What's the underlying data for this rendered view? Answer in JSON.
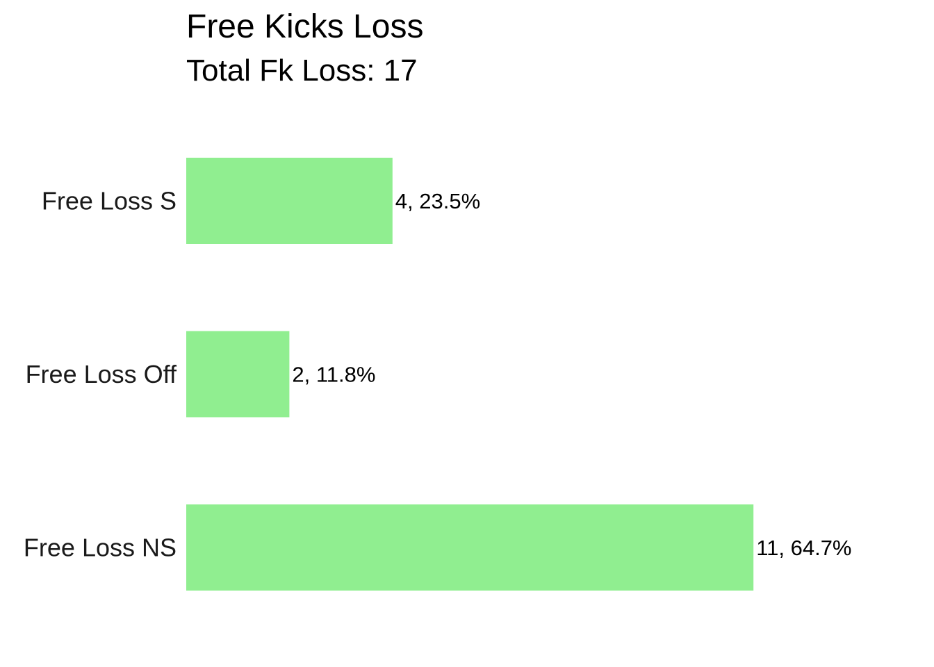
{
  "chart_data": {
    "type": "bar",
    "orientation": "horizontal",
    "title": "Free Kicks Loss",
    "subtitle": "Total Fk Loss: 17",
    "categories": [
      "Free Loss S",
      "Free Loss Off",
      "Free Loss NS"
    ],
    "values": [
      4,
      2,
      11
    ],
    "percentages": [
      23.5,
      11.8,
      64.7
    ],
    "data_labels": [
      "4, 23.5%",
      "2, 11.8%",
      "11, 64.7%"
    ],
    "xlim": [
      0,
      11
    ],
    "grid": false,
    "legend": "none",
    "bar_color": "#90EE90"
  }
}
